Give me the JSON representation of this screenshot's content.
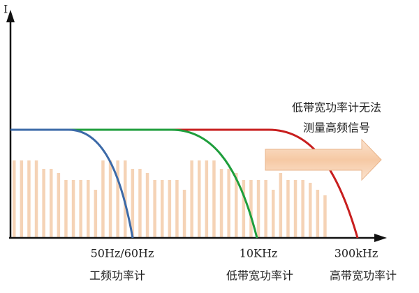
{
  "axis": {
    "y_label": "I"
  },
  "frequency_labels": [
    "50Hz/60Hz",
    "10KHz",
    "300kHz"
  ],
  "meter_labels": [
    "工频功率计",
    "低带宽功率计",
    "高带宽功率计"
  ],
  "annotation": {
    "lines": [
      "低带宽功率计无法",
      "测量高频信号"
    ]
  }
}
